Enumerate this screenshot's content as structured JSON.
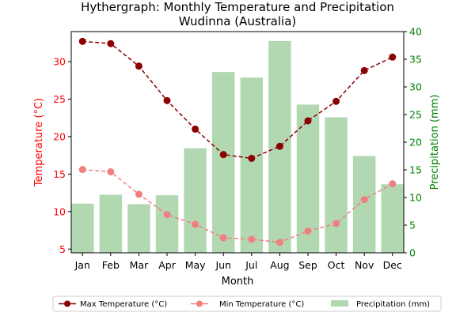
{
  "chart_data": {
    "type": "bar+line",
    "title": "Hythergraph: Monthly Temperature and Precipitation",
    "subtitle": "Wudinna (Australia)",
    "xlabel": "Month",
    "ylabel_left": "Temperature (°C)",
    "ylabel_right": "Precipitation (mm)",
    "categories": [
      "Jan",
      "Feb",
      "Mar",
      "Apr",
      "May",
      "Jun",
      "Jul",
      "Aug",
      "Sep",
      "Oct",
      "Nov",
      "Dec"
    ],
    "ylim_left": [
      4.5,
      34
    ],
    "ylim_right": [
      0,
      40
    ],
    "yticks_left": [
      5,
      10,
      15,
      20,
      25,
      30
    ],
    "yticks_right": [
      0,
      5,
      10,
      15,
      20,
      25,
      30,
      35,
      40
    ],
    "series": [
      {
        "name": "Max Temperature (°C)",
        "kind": "line",
        "axis": "left",
        "color": "#8b0000",
        "values": [
          32.7,
          32.4,
          29.4,
          24.8,
          21.0,
          17.6,
          17.1,
          18.7,
          22.1,
          24.7,
          28.8,
          30.6
        ]
      },
      {
        "name": "Min Temperature (°C)",
        "kind": "line",
        "axis": "left",
        "color": "#f08080",
        "values": [
          15.6,
          15.3,
          12.3,
          9.6,
          8.3,
          6.5,
          6.3,
          5.9,
          7.4,
          8.4,
          11.6,
          13.7
        ]
      },
      {
        "name": "Precipitation (mm)",
        "kind": "bar",
        "axis": "right",
        "color": "#b2d8b2",
        "values": [
          8.9,
          10.5,
          8.8,
          10.4,
          18.9,
          32.7,
          31.7,
          38.3,
          26.8,
          24.5,
          17.5,
          12.4
        ]
      }
    ],
    "grid": false,
    "legend_position": "bottom-center"
  }
}
